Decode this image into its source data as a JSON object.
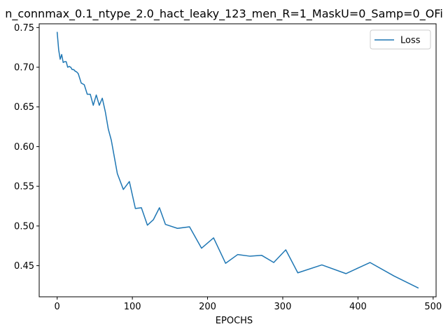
{
  "chart_data": {
    "type": "line",
    "title": "n_connmax_0.1_ntype_2.0_hact_leaky_123_men_R=1_MaskU=0_Samp=0_OFi",
    "xlabel": "EPOCHS",
    "ylabel": "",
    "xlim": [
      -23.9,
      503.9
    ],
    "ylim": [
      0.4108,
      0.7547
    ],
    "xticks": [
      0,
      100,
      200,
      300,
      400,
      500
    ],
    "xtick_labels": [
      "0",
      "100",
      "200",
      "300",
      "400",
      "500"
    ],
    "yticks": [
      0.45,
      0.5,
      0.55,
      0.6,
      0.65,
      0.7,
      0.75
    ],
    "ytick_labels": [
      "0.45",
      "0.50",
      "0.55",
      "0.60",
      "0.65",
      "0.70",
      "0.75"
    ],
    "grid": false,
    "legend_position": "upper right",
    "series": [
      {
        "name": "Loss",
        "color": "#1f77b4",
        "x": [
          0,
          2,
          4,
          6,
          8,
          10,
          12,
          14,
          16,
          18,
          20,
          22,
          24,
          26,
          28,
          32,
          36,
          40,
          44,
          48,
          52,
          56,
          60,
          64,
          68,
          72,
          76,
          80,
          88,
          96,
          104,
          112,
          120,
          128,
          136,
          144,
          160,
          176,
          192,
          208,
          224,
          240,
          256,
          272,
          288,
          304,
          320,
          352,
          384,
          416,
          448,
          480
        ],
        "y": [
          0.744,
          0.722,
          0.71,
          0.716,
          0.706,
          0.707,
          0.707,
          0.7,
          0.701,
          0.7,
          0.697,
          0.697,
          0.695,
          0.694,
          0.692,
          0.68,
          0.678,
          0.666,
          0.666,
          0.652,
          0.665,
          0.652,
          0.661,
          0.644,
          0.622,
          0.608,
          0.587,
          0.566,
          0.546,
          0.556,
          0.522,
          0.523,
          0.501,
          0.508,
          0.523,
          0.502,
          0.497,
          0.499,
          0.472,
          0.485,
          0.453,
          0.464,
          0.462,
          0.463,
          0.454,
          0.47,
          0.441,
          0.451,
          0.44,
          0.454,
          0.437,
          0.422
        ]
      }
    ]
  }
}
